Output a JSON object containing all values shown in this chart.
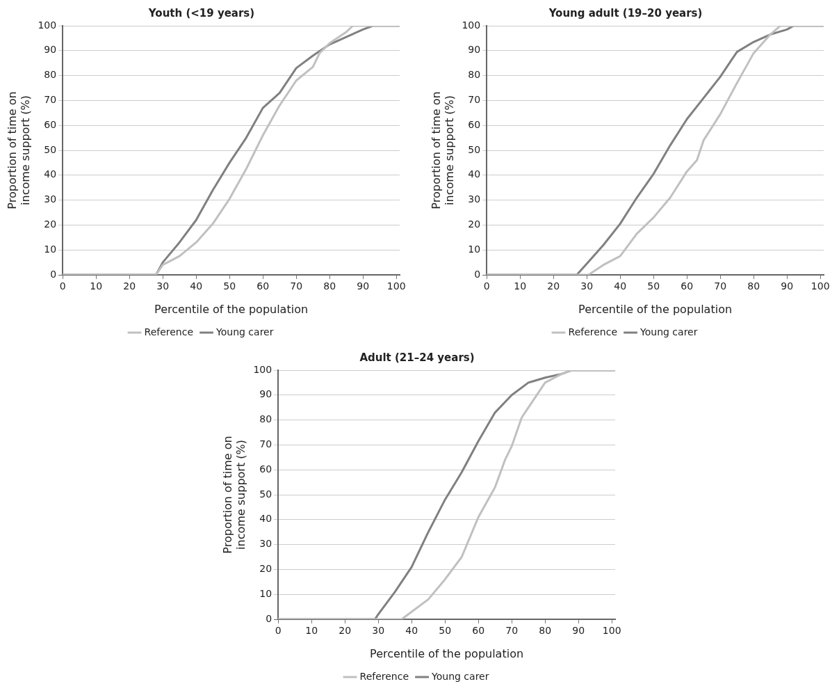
{
  "chart_data": [
    {
      "type": "line",
      "title": "Youth (<19 years)",
      "xlabel": "Percentile of the population",
      "ylabel": "Proportion of time on\nincome support (%)",
      "xlim": [
        0,
        101
      ],
      "xticks": [
        0,
        10,
        20,
        30,
        40,
        50,
        60,
        70,
        80,
        90,
        100
      ],
      "ylim": [
        0,
        100
      ],
      "yticks": [
        0,
        10,
        20,
        30,
        40,
        50,
        60,
        70,
        80,
        90,
        100
      ],
      "grid": "y",
      "legend": "bottom",
      "marker": "none",
      "line_style": "solid",
      "series": [
        {
          "name": "Reference",
          "color": "#c0c0c0",
          "x": [
            0,
            28,
            30,
            35,
            40,
            45,
            50,
            55,
            60,
            65,
            70,
            75,
            77,
            80,
            85,
            87,
            101
          ],
          "values": [
            0,
            0,
            4,
            7.5,
            13,
            20.5,
            30.5,
            42.5,
            56,
            68,
            78,
            83.5,
            89,
            93,
            97.5,
            100,
            100
          ]
        },
        {
          "name": "Young carer",
          "color": "#808080",
          "x": [
            0,
            28,
            30,
            35,
            40,
            45,
            50,
            55,
            60,
            65,
            70,
            75,
            80,
            85,
            90,
            93,
            101
          ],
          "values": [
            0,
            0,
            5,
            13,
            22,
            34,
            45,
            55,
            67,
            73,
            83,
            88,
            92.5,
            95.5,
            98.5,
            100,
            100
          ]
        }
      ]
    },
    {
      "type": "line",
      "title": "Young adult (19–20 years)",
      "xlabel": "Percentile of the population",
      "ylabel": "Proportion of time on\nincome support (%)",
      "xlim": [
        0,
        101
      ],
      "xticks": [
        0,
        10,
        20,
        30,
        40,
        50,
        60,
        70,
        80,
        90,
        100
      ],
      "ylim": [
        0,
        100
      ],
      "yticks": [
        0,
        10,
        20,
        30,
        40,
        50,
        60,
        70,
        80,
        90,
        100
      ],
      "grid": "y",
      "legend": "bottom",
      "marker": "none",
      "line_style": "solid",
      "series": [
        {
          "name": "Reference",
          "color": "#c0c0c0",
          "x": [
            0,
            30.5,
            35,
            40,
            45,
            50,
            55,
            60,
            63,
            65,
            70,
            75,
            80,
            85,
            88,
            101
          ],
          "values": [
            0,
            0,
            4,
            7.5,
            16.5,
            23,
            31,
            41.5,
            46,
            54,
            64.5,
            77,
            89,
            96.5,
            100,
            100
          ]
        },
        {
          "name": "Young carer",
          "color": "#808080",
          "x": [
            0,
            27,
            30,
            35,
            40,
            45,
            50,
            55,
            60,
            65,
            70,
            73,
            75,
            80,
            85,
            90,
            92,
            101
          ],
          "values": [
            0,
            0,
            4.5,
            12,
            20.5,
            31,
            40.5,
            52,
            62.5,
            71,
            79.5,
            85.5,
            89.5,
            93.5,
            96.5,
            98.5,
            100,
            100
          ]
        }
      ]
    },
    {
      "type": "line",
      "title": "Adult (21–24 years)",
      "xlabel": "Percentile of the population",
      "ylabel": "Proportion of time on\nincome support (%)",
      "xlim": [
        0,
        101
      ],
      "xticks": [
        0,
        10,
        20,
        30,
        40,
        50,
        60,
        70,
        80,
        90,
        100
      ],
      "ylim": [
        0,
        100
      ],
      "yticks": [
        0,
        10,
        20,
        30,
        40,
        50,
        60,
        70,
        80,
        90,
        100
      ],
      "grid": "y",
      "legend": "bottom",
      "marker": "none",
      "line_style": "solid",
      "series": [
        {
          "name": "Reference",
          "color": "#c0c0c0",
          "x": [
            0,
            37,
            40,
            45,
            50,
            55,
            60,
            65,
            68,
            70,
            73,
            75,
            80,
            85,
            88,
            101
          ],
          "values": [
            0,
            0,
            3,
            8,
            16,
            25,
            41,
            53,
            64,
            69.5,
            81,
            85,
            95,
            98.5,
            100,
            100
          ]
        },
        {
          "name": "Young carer",
          "color": "#808080",
          "x": [
            0,
            29,
            30,
            35,
            40,
            45,
            50,
            55,
            60,
            65,
            70,
            75,
            80,
            85,
            88,
            101
          ],
          "values": [
            0,
            0,
            2,
            11,
            21,
            35,
            48,
            59,
            71.5,
            83,
            90,
            95,
            97,
            98.5,
            100,
            100
          ]
        }
      ]
    }
  ]
}
